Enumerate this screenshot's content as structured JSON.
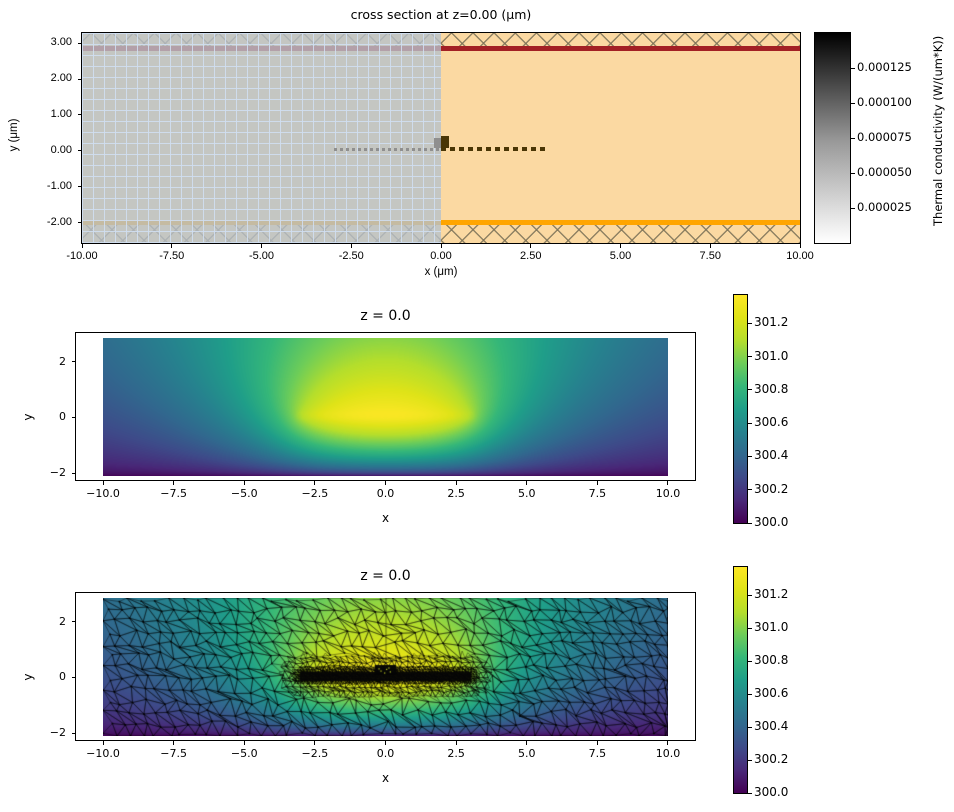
{
  "figure": {
    "background": "#ffffff"
  },
  "colors": {
    "substrate": "#fbd9a2",
    "stripe_red": "#a32024",
    "stripe_orange": "#ffa500",
    "heater_dark": "#4a3605",
    "seed_gray": "#8f8f8f",
    "hatch": "rgba(125,115,88,0.85)",
    "overlay": "rgba(182,192,202,0.8)",
    "overlay_grid": "rgba(208,222,240,0.9)",
    "grey_colorbar": [
      "#ffffff",
      "#9a9a9a",
      "#000000"
    ],
    "viridis_stops": [
      "#440154",
      "#482878",
      "#3e4a89",
      "#31688e",
      "#26828e",
      "#1f9e89",
      "#35b779",
      "#6dcd59",
      "#b4de2c",
      "#dfe318",
      "#fde725"
    ]
  },
  "chart_data": [
    {
      "id": "cross-section",
      "type": "heatmap",
      "title": "cross section at z=0.00 (μm)",
      "xlabel": "x (μm)",
      "ylabel": "y (μm)",
      "xlim": [
        -10,
        10
      ],
      "ylim": [
        -2.56,
        3.28
      ],
      "x_ticks": {
        "values": [
          -10,
          -7.5,
          -5,
          -2.5,
          0,
          2.5,
          5,
          7.5,
          10
        ],
        "labels": [
          "-10.00",
          "-7.50",
          "-5.00",
          "-2.50",
          "0.00",
          "2.50",
          "5.00",
          "7.50",
          "10.00"
        ]
      },
      "y_ticks": {
        "values": [
          3,
          2,
          1,
          0,
          -1,
          -2
        ],
        "labels": [
          "3.00",
          "2.00",
          "1.00",
          "0.00",
          "-1.00",
          "-2.00"
        ]
      },
      "layers": [
        {
          "name": "substrate",
          "color": "#fbd9a2",
          "x": [
            -10,
            10
          ],
          "y": [
            -2.56,
            3.28
          ],
          "hatch": "none"
        },
        {
          "name": "top-cladding",
          "hatch": "xx",
          "y": [
            2.92,
            3.28
          ]
        },
        {
          "name": "top-stripe",
          "color": "#a32024",
          "y": [
            2.78,
            2.92
          ]
        },
        {
          "name": "bottom-stripe",
          "color": "#ffa500",
          "y": [
            -2.05,
            -1.92
          ]
        },
        {
          "name": "bottom-cladding",
          "hatch": "xx",
          "y": [
            -2.56,
            -2.05
          ]
        },
        {
          "name": "heater-line",
          "color": "#4a3605",
          "style": "dashed",
          "y": 0.05,
          "x": [
            0,
            3
          ]
        },
        {
          "name": "seed-line",
          "color": "#8f8f8f",
          "style": "dashed",
          "y": 0.05,
          "x": [
            -3,
            0
          ]
        },
        {
          "name": "heater-pad",
          "color": "#4a3605",
          "x": [
            0,
            0.22
          ],
          "y": [
            0.1,
            0.45
          ]
        },
        {
          "name": "seed-pad",
          "color": "#8f8f8f",
          "x": [
            -0.2,
            0
          ],
          "y": [
            0.1,
            0.4
          ]
        },
        {
          "name": "sim-region-overlay",
          "color": "rgba(182,192,202,0.8)",
          "x": [
            -10,
            0
          ],
          "grid": true
        }
      ],
      "colorbar": {
        "label": "Thermal conductivity (W/(um*K))",
        "min": 0,
        "max": 0.00015,
        "colormap": "greys (white bottom to black top)",
        "ticks": {
          "values": [
            2.5e-05,
            5e-05,
            7.5e-05,
            0.0001,
            0.000125
          ],
          "labels": [
            "0.000025",
            "0.000050",
            "0.000075",
            "0.000100",
            "0.000125"
          ]
        }
      }
    },
    {
      "id": "temperature-field",
      "type": "heatmap",
      "title": "z = 0.0",
      "xlabel": "x",
      "ylabel": "y",
      "extent": {
        "x": [
          -10,
          10
        ],
        "y": [
          -2.1,
          2.85
        ]
      },
      "x_ticks": {
        "values": [
          -10,
          -7.5,
          -5,
          -2.5,
          0,
          2.5,
          5,
          7.5,
          10
        ],
        "labels": [
          "−10.0",
          "−7.5",
          "−5.0",
          "−2.5",
          "0.0",
          "2.5",
          "5.0",
          "7.5",
          "10.0"
        ]
      },
      "y_ticks": {
        "values": [
          2,
          0,
          -2
        ],
        "labels": [
          "2",
          "0",
          "−2"
        ]
      },
      "colormap": "viridis",
      "field": {
        "ambient": 300,
        "peak": 301.35,
        "hot_bar": {
          "x": [
            -3,
            3
          ],
          "y": 0.05
        },
        "cold_boundary": "bottom"
      },
      "colorbar": {
        "min": 300,
        "max": 301.37,
        "ticks": {
          "values": [
            300,
            300.2,
            300.4,
            300.6,
            300.8,
            301,
            301.2
          ],
          "labels": [
            "300.0",
            "300.2",
            "300.4",
            "300.6",
            "300.8",
            "301.0",
            "301.2"
          ]
        }
      }
    },
    {
      "id": "temperature-mesh",
      "type": "heatmap",
      "title": "z = 0.0",
      "xlabel": "x",
      "ylabel": "y",
      "extent": {
        "x": [
          -10,
          10
        ],
        "y": [
          -2.1,
          2.85
        ]
      },
      "x_ticks": {
        "values": [
          -10,
          -7.5,
          -5,
          -2.5,
          0,
          2.5,
          5,
          7.5,
          10
        ],
        "labels": [
          "−10.0",
          "−7.5",
          "−5.0",
          "−2.5",
          "0.0",
          "2.5",
          "5.0",
          "7.5",
          "10.0"
        ]
      },
      "y_ticks": {
        "values": [
          2,
          0,
          -2
        ],
        "labels": [
          "2",
          "0",
          "−2"
        ]
      },
      "colormap": "viridis",
      "field": {
        "ambient": 300,
        "peak": 301.35,
        "hot_bar": {
          "x": [
            -3,
            3
          ],
          "y": 0.05
        },
        "cold_boundary": "bottom"
      },
      "mesh": {
        "style": "triangular",
        "color": "#000000",
        "refined_near": "hot bar",
        "center_line_x": 0
      },
      "colorbar": {
        "min": 300,
        "max": 301.37,
        "ticks": {
          "values": [
            300,
            300.2,
            300.4,
            300.6,
            300.8,
            301,
            301.2
          ],
          "labels": [
            "300.0",
            "300.2",
            "300.4",
            "300.6",
            "300.8",
            "301.0",
            "301.2"
          ]
        }
      }
    }
  ]
}
